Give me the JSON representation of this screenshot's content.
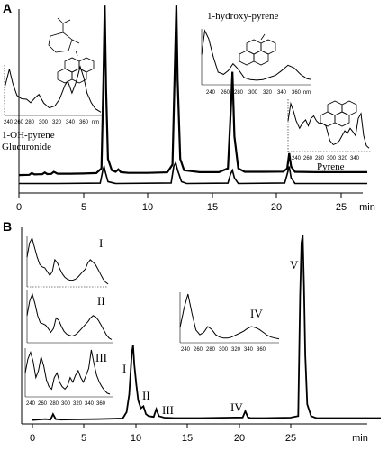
{
  "chart_data": [
    {
      "panel": "A",
      "type": "line",
      "x_unit": "min",
      "xlim": [
        0,
        27
      ],
      "x_ticks": [
        0,
        5,
        10,
        15,
        20,
        25
      ],
      "ylim": [
        0,
        100
      ],
      "series": [
        {
          "x": [
            0,
            0.8,
            1.0,
            1.2,
            1.6,
            1.8,
            2.0,
            2.2,
            2.5,
            2.7,
            3,
            4,
            5,
            6,
            6.4,
            6.55,
            6.65,
            6.75,
            6.9,
            7.2,
            7.5,
            7.7,
            7.9,
            8.5,
            10,
            11.5,
            11.9,
            12.1,
            12.2,
            12.3,
            12.5,
            12.8,
            14,
            15.5,
            16.2,
            16.45,
            16.55,
            16.7,
            17.0,
            17.5,
            19,
            20.5,
            20.8,
            20.95,
            21.1,
            21.4,
            23,
            25,
            27
          ],
          "y": [
            9.5,
            9.6,
            10.5,
            9.8,
            9.9,
            9.9,
            10.8,
            10.0,
            10.1,
            11.2,
            10.2,
            10.2,
            10.3,
            10.5,
            13,
            60,
            99,
            55,
            18,
            12,
            11.2,
            12.5,
            11,
            10.6,
            10.6,
            10.9,
            15,
            70,
            99,
            60,
            18,
            12,
            11,
            11,
            13,
            48,
            64,
            30,
            13,
            11.2,
            11.2,
            11.3,
            13,
            21,
            14,
            11.2,
            11,
            11,
            11
          ]
        },
        {
          "x": [
            0,
            3,
            6.3,
            6.5,
            6.6,
            6.7,
            6.9,
            7.5,
            11.8,
            12.0,
            12.15,
            12.3,
            12.6,
            13,
            16.2,
            16.4,
            16.55,
            16.7,
            17,
            20.6,
            20.8,
            20.95,
            21.1,
            21.4,
            27
          ],
          "y": [
            5,
            5,
            5.2,
            12,
            14,
            11,
            6,
            5,
            5.3,
            14,
            16,
            12,
            6,
            5,
            5.2,
            10,
            12,
            8,
            5,
            5.3,
            10,
            14,
            8,
            5,
            5
          ]
        }
      ]
    },
    {
      "panel": "B",
      "type": "line",
      "x_unit": "min",
      "xlim": [
        0,
        27
      ],
      "x_ticks": [
        0,
        5,
        10,
        15,
        20,
        25
      ],
      "ylim": [
        0,
        100
      ],
      "series": [
        {
          "x": [
            0,
            1,
            1.4,
            1.6,
            1.8,
            2.2,
            3,
            5,
            7,
            7.3,
            7.5,
            7.7,
            7.8,
            7.9,
            8.05,
            8.2,
            8.4,
            8.6,
            8.8,
            9.0,
            9.4,
            9.6,
            9.8,
            10.2,
            11,
            13,
            16.3,
            16.5,
            16.6,
            16.7,
            16.9,
            18,
            20,
            20.6,
            20.75,
            20.85,
            20.95,
            21.05,
            21.15,
            21.3,
            21.6,
            22,
            27
          ],
          "y": [
            2,
            2.5,
            2.2,
            5,
            2.5,
            2.2,
            2.3,
            2.5,
            2.8,
            6,
            15,
            36,
            40,
            30,
            20,
            12,
            8,
            9,
            5,
            4,
            3.6,
            7.5,
            4,
            3.2,
            3,
            3,
            3.3,
            6.5,
            5,
            3.4,
            3,
            3,
            3.2,
            4,
            65,
            92,
            96,
            70,
            35,
            10,
            4,
            3,
            3
          ]
        }
      ]
    },
    {
      "panel": "A-inset-glucuronide",
      "type": "line",
      "annotation": "1-OH-pyrene Glucuronide",
      "x_ticks": [
        240,
        260,
        280,
        300,
        320,
        340,
        360
      ],
      "xlim": [
        230,
        370
      ],
      "x": [
        230,
        237,
        242,
        248,
        255,
        262,
        268,
        275,
        280,
        287,
        295,
        303,
        310,
        318,
        322,
        328,
        334,
        340,
        345,
        350,
        356,
        362,
        370
      ],
      "y": [
        55,
        95,
        65,
        40,
        33,
        32,
        25,
        36,
        42,
        24,
        14,
        18,
        32,
        62,
        70,
        45,
        68,
        100,
        78,
        45,
        25,
        12,
        5
      ]
    },
    {
      "panel": "A-inset-hydroxypyrene",
      "type": "line",
      "annotation": "1-hydroxy-pyrene",
      "x_ticks": [
        240,
        260,
        280,
        300,
        320,
        340,
        360
      ],
      "xlim": [
        232,
        372
      ],
      "x_tick_unit": "nm",
      "x": [
        232,
        236,
        241,
        247,
        253,
        260,
        266,
        272,
        276,
        280,
        286,
        294,
        302,
        310,
        318,
        326,
        334,
        342,
        350,
        358,
        366,
        372
      ],
      "y": [
        55,
        100,
        85,
        50,
        22,
        18,
        25,
        38,
        32,
        25,
        12,
        8,
        7,
        8,
        12,
        16,
        25,
        35,
        30,
        18,
        10,
        8
      ]
    },
    {
      "panel": "A-inset-pyrene",
      "type": "line",
      "annotation": "Pyrene",
      "x_ticks": [
        240,
        260,
        280,
        300,
        320,
        340
      ],
      "xlim": [
        230,
        350
      ],
      "x": [
        230,
        234,
        238,
        242,
        247,
        251,
        256,
        260,
        264,
        268,
        272,
        276,
        281,
        286,
        292,
        297,
        302,
        306,
        310,
        314,
        318,
        322,
        326,
        330,
        334,
        338,
        342,
        346,
        350
      ],
      "y": [
        60,
        95,
        80,
        60,
        45,
        55,
        62,
        50,
        65,
        70,
        60,
        55,
        55,
        50,
        20,
        12,
        15,
        20,
        30,
        40,
        35,
        45,
        38,
        30,
        65,
        75,
        30,
        10,
        5
      ]
    },
    {
      "panel": "B-inset-I",
      "type": "line",
      "label": "I",
      "x": [
        0,
        1,
        2,
        3,
        4,
        5,
        6,
        7,
        8,
        9,
        10,
        11,
        12,
        13,
        14,
        15,
        16,
        17,
        18,
        19,
        20,
        21,
        22,
        23,
        24,
        25,
        26,
        27,
        28,
        29,
        30,
        31,
        32
      ],
      "y": [
        60,
        90,
        100,
        80,
        60,
        45,
        40,
        38,
        30,
        22,
        30,
        55,
        48,
        35,
        25,
        18,
        14,
        12,
        12,
        14,
        18,
        24,
        30,
        35,
        48,
        55,
        50,
        45,
        35,
        25,
        15,
        8,
        4
      ]
    },
    {
      "panel": "B-inset-II",
      "type": "line",
      "label": "II",
      "x": [
        0,
        1,
        2,
        3,
        4,
        5,
        6,
        7,
        8,
        9,
        10,
        11,
        12,
        13,
        14,
        15,
        16,
        17,
        18,
        19,
        20,
        21,
        22,
        23,
        24,
        25,
        26,
        27,
        28,
        29,
        30,
        31,
        32
      ],
      "y": [
        55,
        85,
        100,
        80,
        55,
        40,
        38,
        35,
        28,
        20,
        28,
        50,
        45,
        32,
        22,
        16,
        14,
        12,
        14,
        18,
        24,
        30,
        36,
        42,
        50,
        55,
        52,
        45,
        35,
        25,
        15,
        8,
        5
      ]
    },
    {
      "panel": "B-inset-III",
      "type": "line",
      "label": "III",
      "x_ticks": [
        240,
        260,
        280,
        300,
        320,
        340,
        360
      ],
      "x": [
        0,
        1,
        2,
        3,
        4,
        5,
        6,
        7,
        8,
        9,
        10,
        11,
        12,
        13,
        14,
        15,
        16,
        17,
        18,
        19,
        20,
        21,
        22,
        23,
        24,
        25,
        26,
        27,
        28,
        29,
        30,
        31,
        32
      ],
      "y": [
        50,
        80,
        95,
        75,
        40,
        55,
        85,
        65,
        35,
        20,
        15,
        40,
        50,
        30,
        20,
        15,
        22,
        40,
        30,
        45,
        55,
        40,
        30,
        45,
        60,
        100,
        70,
        45,
        30,
        20,
        12,
        6,
        4
      ]
    },
    {
      "panel": "B-inset-IV",
      "type": "line",
      "label": "IV",
      "x_ticks": [
        240,
        260,
        280,
        300,
        320,
        340,
        360
      ],
      "x": [
        0,
        1,
        2,
        3,
        4,
        5,
        6,
        7,
        8,
        9,
        10,
        11,
        12,
        13,
        14,
        15,
        16,
        17,
        18,
        19,
        20,
        21,
        22,
        23,
        24,
        25
      ],
      "y": [
        30,
        70,
        100,
        60,
        25,
        15,
        20,
        32,
        26,
        15,
        10,
        8,
        8,
        10,
        14,
        18,
        22,
        28,
        32,
        30,
        26,
        20,
        14,
        10,
        8,
        6
      ]
    }
  ],
  "labels": {
    "panel_a": "A",
    "panel_b": "B",
    "unit_a": "min",
    "unit_b": "min",
    "ticks": [
      "0",
      "5",
      "10",
      "15",
      "20",
      "25"
    ],
    "inset_nm": "nm",
    "gluc_line1": "1-OH-pyrene",
    "gluc_line2": "Glucuronide",
    "hydroxy": "1-hydroxy-pyrene",
    "pyrene": "Pyrene",
    "peak_I": "I",
    "peak_II": "II",
    "peak_III": "III",
    "peak_IV": "IV",
    "peak_V": "V",
    "inset_I": "I",
    "inset_II": "II",
    "inset_III": "III",
    "inset_IV": "IV",
    "inset_ticks_gluc": [
      "240",
      "280",
      "320",
      "360"
    ],
    "inset_ticks_gluc_mid": [
      "260",
      "300",
      "340"
    ],
    "inset_ticks_hydroxy": [
      "240",
      "260",
      "280",
      "300",
      "320",
      "340",
      "360"
    ],
    "inset_ticks_pyrene": [
      "240",
      "260",
      "280",
      "300",
      "320",
      "340"
    ],
    "inset_ticks_b": [
      "240",
      "260",
      "280",
      "300",
      "320",
      "340",
      "360"
    ],
    "struct_oh": "OH",
    "struct_ho": "HO"
  },
  "colors": {
    "line": "#000000",
    "axis": "#000000",
    "background": "#ffffff"
  }
}
